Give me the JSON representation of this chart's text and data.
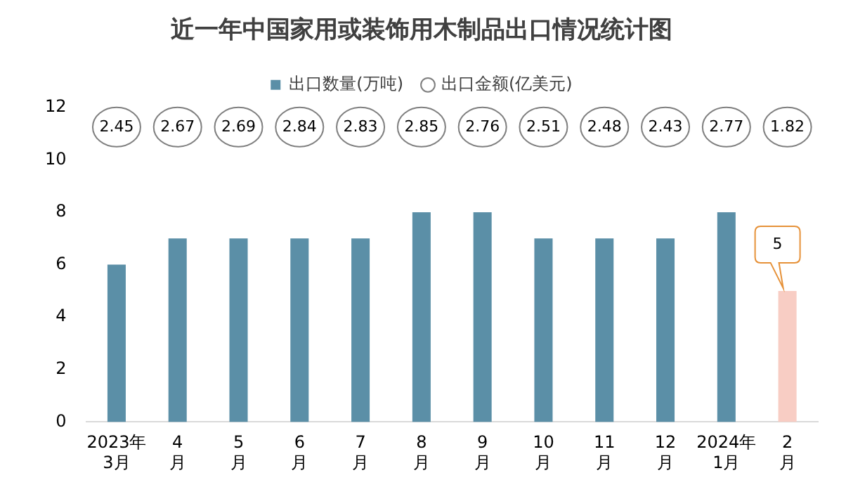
{
  "chart_data": {
    "type": "bar",
    "title": "近一年中国家用或装饰用木制品出口情况统计图",
    "categories": [
      "2023年\n3月",
      "4\n月",
      "5\n月",
      "6\n月",
      "7\n月",
      "8\n月",
      "9\n月",
      "10\n月",
      "11\n月",
      "12\n月",
      "2024年\n1月",
      "2\n月"
    ],
    "series": [
      {
        "name": "出口数量(万吨)",
        "color": "#5b8fa7",
        "colors": [
          null,
          null,
          null,
          null,
          null,
          null,
          null,
          null,
          null,
          null,
          null,
          "#f8cdc4"
        ],
        "values": [
          6,
          7,
          7,
          7,
          7,
          8,
          8,
          7,
          7,
          7,
          8,
          5
        ],
        "value_labels": [
          null,
          null,
          null,
          null,
          null,
          null,
          null,
          null,
          null,
          null,
          null,
          "5"
        ]
      },
      {
        "name": "出口金额(亿美元)",
        "type": "scatter",
        "marker": "circle",
        "color": "#7f7f7f",
        "values": [
          null,
          null,
          null,
          null,
          null,
          null,
          null,
          null,
          null,
          null,
          null,
          null
        ]
      }
    ],
    "annotations": [
      {
        "text": "2.45",
        "x": "2023年\n3月"
      },
      {
        "text": "2.67",
        "x": "4\n月"
      },
      {
        "text": "2.69",
        "x": "5\n月"
      },
      {
        "text": "2.84",
        "x": "6\n月"
      },
      {
        "text": "2.83",
        "x": "7\n月"
      },
      {
        "text": "2.85",
        "x": "8\n月"
      },
      {
        "text": "2.76",
        "x": "9\n月"
      },
      {
        "text": "2.51",
        "x": "10\n月"
      },
      {
        "text": "2.48",
        "x": "11\n月"
      },
      {
        "text": "2.43",
        "x": "12\n月"
      },
      {
        "text": "2.77",
        "x": "2024年\n1月"
      },
      {
        "text": "1.82",
        "x": "2\n月"
      }
    ],
    "ylim": [
      0,
      12
    ],
    "yticks": [
      0,
      2,
      4,
      6,
      8,
      10,
      12
    ],
    "grid": false,
    "legend": "top"
  }
}
